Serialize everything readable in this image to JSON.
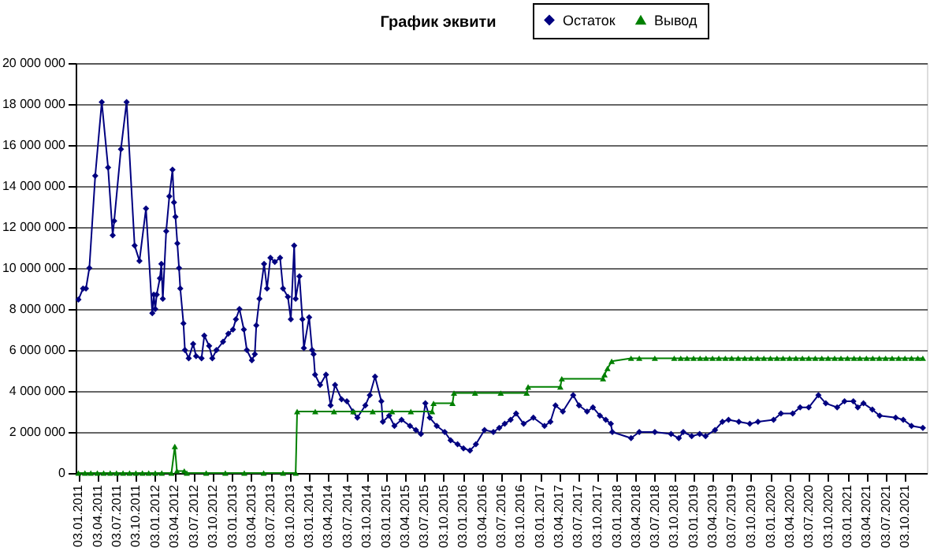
{
  "chart_data": {
    "type": "line",
    "title": "График эквити",
    "legend": "top",
    "grid": "y",
    "xlim": [
      "2010-12-21",
      "2022-01-15"
    ],
    "ylim": [
      0,
      20000000
    ],
    "yticks": [
      {
        "value": 0,
        "label": "0"
      },
      {
        "value": 2000000,
        "label": "2 000 000"
      },
      {
        "value": 4000000,
        "label": "4 000 000"
      },
      {
        "value": 6000000,
        "label": "6 000 000"
      },
      {
        "value": 8000000,
        "label": "8 000 000"
      },
      {
        "value": 10000000,
        "label": "10 000 000"
      },
      {
        "value": 12000000,
        "label": "12 000 000"
      },
      {
        "value": 14000000,
        "label": "14 000 000"
      },
      {
        "value": 16000000,
        "label": "16 000 000"
      },
      {
        "value": 18000000,
        "label": "18 000 000"
      },
      {
        "value": 20000000,
        "label": "20 000 000"
      }
    ],
    "xticks": [
      {
        "value": "2011-01-03",
        "label": "03.01.2011"
      },
      {
        "value": "2011-04-03",
        "label": "03.04.2011"
      },
      {
        "value": "2011-07-03",
        "label": "03.07.2011"
      },
      {
        "value": "2011-10-03",
        "label": "03.10.2011"
      },
      {
        "value": "2012-01-03",
        "label": "03.01.2012"
      },
      {
        "value": "2012-04-03",
        "label": "03.04.2012"
      },
      {
        "value": "2012-07-03",
        "label": "03.07.2012"
      },
      {
        "value": "2012-10-03",
        "label": "03.10.2012"
      },
      {
        "value": "2013-01-03",
        "label": "03.01.2013"
      },
      {
        "value": "2013-04-03",
        "label": "03.04.2013"
      },
      {
        "value": "2013-07-03",
        "label": "03.07.2013"
      },
      {
        "value": "2013-10-03",
        "label": "03.10.2013"
      },
      {
        "value": "2014-01-03",
        "label": "03.01.2014"
      },
      {
        "value": "2014-04-03",
        "label": "03.04.2014"
      },
      {
        "value": "2014-07-03",
        "label": "03.07.2014"
      },
      {
        "value": "2014-10-03",
        "label": "03.10.2014"
      },
      {
        "value": "2015-01-03",
        "label": "03.01.2015"
      },
      {
        "value": "2015-04-03",
        "label": "03.04.2015"
      },
      {
        "value": "2015-07-03",
        "label": "03.07.2015"
      },
      {
        "value": "2015-10-03",
        "label": "03.10.2015"
      },
      {
        "value": "2016-01-03",
        "label": "03.01.2016"
      },
      {
        "value": "2016-04-03",
        "label": "03.04.2016"
      },
      {
        "value": "2016-07-03",
        "label": "03.07.2016"
      },
      {
        "value": "2016-10-03",
        "label": "03.10.2016"
      },
      {
        "value": "2017-01-03",
        "label": "03.01.2017"
      },
      {
        "value": "2017-04-03",
        "label": "03.04.2017"
      },
      {
        "value": "2017-07-03",
        "label": "03.07.2017"
      },
      {
        "value": "2017-10-03",
        "label": "03.10.2017"
      },
      {
        "value": "2018-01-03",
        "label": "03.01.2018"
      },
      {
        "value": "2018-04-03",
        "label": "03.04.2018"
      },
      {
        "value": "2018-07-03",
        "label": "03.07.2018"
      },
      {
        "value": "2018-10-03",
        "label": "03.10.2018"
      },
      {
        "value": "2019-01-03",
        "label": "03.01.2019"
      },
      {
        "value": "2019-04-03",
        "label": "03.04.2019"
      },
      {
        "value": "2019-07-03",
        "label": "03.07.2019"
      },
      {
        "value": "2019-10-03",
        "label": "03.10.2019"
      },
      {
        "value": "2020-01-03",
        "label": "03.01.2020"
      },
      {
        "value": "2020-04-03",
        "label": "03.04.2020"
      },
      {
        "value": "2020-07-03",
        "label": "03.07.2020"
      },
      {
        "value": "2020-10-03",
        "label": "03.10.2020"
      },
      {
        "value": "2021-01-03",
        "label": "03.01.2021"
      },
      {
        "value": "2021-04-03",
        "label": "03.04.2021"
      },
      {
        "value": "2021-07-03",
        "label": "03.07.2021"
      },
      {
        "value": "2021-10-03",
        "label": "03.10.2021"
      }
    ],
    "series": [
      {
        "name": "Остаток",
        "color": "#000080",
        "marker": "diamond",
        "x": [
          "2011-01-03",
          "2011-01-25",
          "2011-02-08",
          "2011-02-24",
          "2011-03-24",
          "2011-04-24",
          "2011-05-24",
          "2011-06-15",
          "2011-06-22",
          "2011-07-24",
          "2011-08-20",
          "2011-09-27",
          "2011-10-20",
          "2011-11-20",
          "2011-12-20",
          "2011-12-27",
          "2012-01-03",
          "2012-01-10",
          "2012-01-25",
          "2012-02-01",
          "2012-02-08",
          "2012-02-24",
          "2012-03-10",
          "2012-03-25",
          "2012-04-01",
          "2012-04-08",
          "2012-04-17",
          "2012-04-25",
          "2012-05-01",
          "2012-05-16",
          "2012-05-23",
          "2012-06-10",
          "2012-07-01",
          "2012-07-15",
          "2012-08-10",
          "2012-08-23",
          "2012-09-15",
          "2012-09-30",
          "2012-10-20",
          "2012-11-20",
          "2012-12-15",
          "2013-01-06",
          "2013-01-20",
          "2013-02-06",
          "2013-02-27",
          "2013-03-13",
          "2013-04-06",
          "2013-04-20",
          "2013-04-27",
          "2013-05-12",
          "2013-06-03",
          "2013-06-17",
          "2013-07-03",
          "2013-07-24",
          "2013-08-18",
          "2013-09-01",
          "2013-09-24",
          "2013-10-08",
          "2013-10-24",
          "2013-10-31",
          "2013-11-18",
          "2013-12-02",
          "2013-12-09",
          "2014-01-03",
          "2014-01-17",
          "2014-01-24",
          "2014-01-31",
          "2014-02-24",
          "2014-03-24",
          "2014-04-15",
          "2014-05-06",
          "2014-06-06",
          "2014-07-01",
          "2014-07-30",
          "2014-08-20",
          "2014-09-27",
          "2014-10-18",
          "2014-11-12",
          "2014-12-12",
          "2014-12-19",
          "2015-01-18",
          "2015-02-12",
          "2015-03-18",
          "2015-04-27",
          "2015-05-25",
          "2015-06-18",
          "2015-07-09",
          "2015-07-30",
          "2015-09-01",
          "2015-10-09",
          "2015-11-06",
          "2015-12-09",
          "2016-01-06",
          "2016-02-06",
          "2016-03-05",
          "2016-04-15",
          "2016-05-27",
          "2016-06-24",
          "2016-07-20",
          "2016-08-17",
          "2016-09-12",
          "2016-10-18",
          "2016-12-03",
          "2017-01-25",
          "2017-02-22",
          "2017-03-18",
          "2017-04-22",
          "2017-06-10",
          "2017-07-08",
          "2017-08-15",
          "2017-09-12",
          "2017-10-15",
          "2017-11-12",
          "2017-12-06",
          "2017-12-13",
          "2018-03-12",
          "2018-04-20",
          "2018-07-03",
          "2018-09-18",
          "2018-10-25",
          "2018-11-15",
          "2018-12-25",
          "2019-02-01",
          "2019-03-01",
          "2019-04-15",
          "2019-05-20",
          "2019-06-18",
          "2019-08-06",
          "2019-09-27",
          "2019-11-05",
          "2020-01-18",
          "2020-02-22",
          "2020-04-18",
          "2020-05-23",
          "2020-07-03",
          "2020-08-18",
          "2020-09-22",
          "2020-11-15",
          "2020-12-20",
          "2021-01-31",
          "2021-02-21",
          "2021-03-20",
          "2021-05-01",
          "2021-06-05",
          "2021-08-20",
          "2021-09-25",
          "2021-11-03",
          "2021-12-27"
        ],
        "values": [
          8460000,
          9000000,
          9000000,
          10000000,
          14500000,
          18100000,
          14900000,
          11600000,
          12300000,
          15800000,
          18100000,
          11100000,
          10350000,
          12900000,
          7800000,
          8700000,
          8000000,
          8700000,
          9500000,
          10200000,
          8500000,
          11800000,
          13500000,
          14800000,
          13200000,
          12500000,
          11200000,
          10000000,
          9000000,
          7300000,
          6000000,
          5600000,
          6300000,
          5700000,
          5600000,
          6700000,
          6200000,
          5600000,
          6000000,
          6400000,
          6800000,
          7000000,
          7500000,
          8000000,
          7000000,
          6000000,
          5500000,
          5800000,
          7200000,
          8500000,
          10200000,
          9000000,
          10500000,
          10300000,
          10500000,
          9000000,
          8600000,
          7500000,
          11100000,
          8500000,
          9600000,
          7500000,
          6100000,
          7600000,
          6000000,
          5800000,
          4800000,
          4300000,
          4800000,
          3300000,
          4300000,
          3600000,
          3500000,
          3000000,
          2700000,
          3300000,
          3800000,
          4700000,
          3500000,
          2500000,
          2800000,
          2300000,
          2600000,
          2300000,
          2100000,
          1900000,
          3400000,
          2700000,
          2300000,
          2000000,
          1600000,
          1400000,
          1200000,
          1100000,
          1400000,
          2100000,
          2000000,
          2200000,
          2400000,
          2600000,
          2900000,
          2400000,
          2700000,
          2300000,
          2500000,
          3300000,
          3000000,
          3800000,
          3300000,
          3000000,
          3200000,
          2800000,
          2600000,
          2400000,
          2000000,
          1700000,
          2000000,
          2000000,
          1900000,
          1700000,
          2000000,
          1800000,
          1900000,
          1800000,
          2100000,
          2500000,
          2600000,
          2500000,
          2400000,
          2500000,
          2600000,
          2900000,
          2900000,
          3200000,
          3200000,
          3800000,
          3400000,
          3200000,
          3500000,
          3500000,
          3200000,
          3400000,
          3100000,
          2800000,
          2700000,
          2600000,
          2300000,
          2200000
        ]
      },
      {
        "name": "Вывод",
        "color": "#008000",
        "marker": "triangle",
        "x": [
          "2011-01-03",
          "2011-02-03",
          "2011-03-03",
          "2011-04-03",
          "2011-05-03",
          "2011-06-03",
          "2011-07-03",
          "2011-08-03",
          "2011-09-03",
          "2011-10-03",
          "2011-11-03",
          "2011-12-03",
          "2012-01-03",
          "2012-02-03",
          "2012-03-20",
          "2012-04-05",
          "2012-04-15",
          "2012-05-20",
          "2012-06-01",
          "2012-09-01",
          "2012-12-01",
          "2013-03-01",
          "2013-06-01",
          "2013-09-01",
          "2013-10-31",
          "2013-11-07",
          "2014-02-01",
          "2014-05-01",
          "2014-08-01",
          "2014-11-01",
          "2015-02-01",
          "2015-05-01",
          "2015-08-10",
          "2015-08-17",
          "2015-11-15",
          "2015-11-22",
          "2016-03-01",
          "2016-07-01",
          "2016-11-01",
          "2016-11-08",
          "2017-04-10",
          "2017-04-17",
          "2017-10-30",
          "2017-11-06",
          "2017-11-20",
          "2017-12-10",
          "2018-03-12",
          "2018-04-20",
          "2018-07-03",
          "2018-10-03",
          "2018-11-03",
          "2018-12-03",
          "2019-01-03",
          "2019-02-03",
          "2019-03-03",
          "2019-04-03",
          "2019-05-03",
          "2019-06-03",
          "2019-07-03",
          "2019-08-03",
          "2019-09-03",
          "2019-10-03",
          "2019-11-03",
          "2019-12-03",
          "2020-01-03",
          "2020-02-03",
          "2020-03-03",
          "2020-04-03",
          "2020-05-03",
          "2020-06-03",
          "2020-07-03",
          "2020-08-03",
          "2020-09-03",
          "2020-10-03",
          "2020-11-03",
          "2020-12-03",
          "2021-01-03",
          "2021-02-03",
          "2021-03-03",
          "2021-04-03",
          "2021-05-03",
          "2021-06-03",
          "2021-07-03",
          "2021-08-03",
          "2021-09-03",
          "2021-10-03",
          "2021-11-03",
          "2021-12-03",
          "2021-12-27"
        ],
        "values": [
          0,
          0,
          0,
          0,
          0,
          0,
          0,
          0,
          0,
          0,
          0,
          0,
          0,
          0,
          0,
          1300000,
          100000,
          100000,
          0,
          0,
          0,
          0,
          0,
          0,
          0,
          3000000,
          3000000,
          3000000,
          3000000,
          3000000,
          3000000,
          3000000,
          3000000,
          3400000,
          3400000,
          3900000,
          3900000,
          3900000,
          3900000,
          4200000,
          4200000,
          4600000,
          4600000,
          4800000,
          5100000,
          5450000,
          5600000,
          5600000,
          5600000,
          5600000,
          5600000,
          5600000,
          5600000,
          5600000,
          5600000,
          5600000,
          5600000,
          5600000,
          5600000,
          5600000,
          5600000,
          5600000,
          5600000,
          5600000,
          5600000,
          5600000,
          5600000,
          5600000,
          5600000,
          5600000,
          5600000,
          5600000,
          5600000,
          5600000,
          5600000,
          5600000,
          5600000,
          5600000,
          5600000,
          5600000,
          5600000,
          5600000,
          5600000,
          5600000,
          5600000,
          5600000,
          5600000,
          5600000,
          5600000
        ]
      }
    ]
  }
}
